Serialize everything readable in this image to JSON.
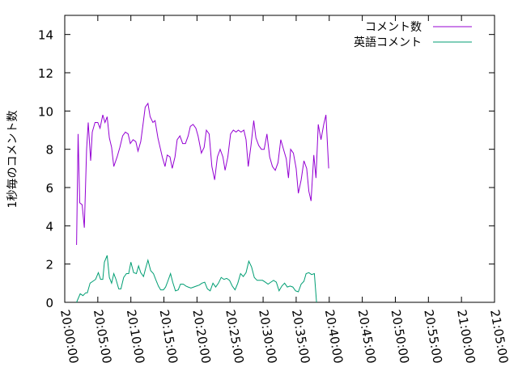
{
  "chart_data": {
    "type": "line",
    "xlabel": "",
    "ylabel": "1秒毎のコメント数",
    "xlim": [
      "20:00:00",
      "21:05:00"
    ],
    "ylim": [
      0,
      15
    ],
    "x_ticks": [
      "20:00:00",
      "20:05:00",
      "20:10:00",
      "20:15:00",
      "20:20:00",
      "20:25:00",
      "20:30:00",
      "20:35:00",
      "20:40:00",
      "20:45:00",
      "20:50:00",
      "20:55:00",
      "21:00:00",
      "21:05:00"
    ],
    "y_ticks": [
      0,
      2,
      4,
      6,
      8,
      10,
      12,
      14
    ],
    "grid": false,
    "legend_position": "top-right",
    "series": [
      {
        "name": "コメント数",
        "color": "#9400d3",
        "points": [
          [
            "20:01:47",
            3.0
          ],
          [
            "20:02:01",
            8.8
          ],
          [
            "20:02:16",
            5.2
          ],
          [
            "20:02:38",
            5.1
          ],
          [
            "20:02:58",
            3.9
          ],
          [
            "20:03:18",
            8.0
          ],
          [
            "20:03:33",
            9.4
          ],
          [
            "20:03:55",
            7.4
          ],
          [
            "20:04:10",
            8.9
          ],
          [
            "20:04:35",
            9.4
          ],
          [
            "20:05:00",
            9.4
          ],
          [
            "20:05:20",
            9.1
          ],
          [
            "20:05:45",
            9.8
          ],
          [
            "20:06:05",
            9.4
          ],
          [
            "20:06:25",
            9.7
          ],
          [
            "20:06:45",
            8.6
          ],
          [
            "20:07:05",
            8.1
          ],
          [
            "20:07:25",
            7.1
          ],
          [
            "20:07:55",
            7.6
          ],
          [
            "20:08:20",
            8.1
          ],
          [
            "20:08:45",
            8.7
          ],
          [
            "20:09:10",
            8.9
          ],
          [
            "20:09:35",
            8.8
          ],
          [
            "20:09:55",
            8.3
          ],
          [
            "20:10:20",
            8.5
          ],
          [
            "20:10:45",
            8.4
          ],
          [
            "20:11:05",
            7.9
          ],
          [
            "20:11:30",
            8.4
          ],
          [
            "20:11:50",
            9.3
          ],
          [
            "20:12:10",
            10.2
          ],
          [
            "20:12:35",
            10.4
          ],
          [
            "20:12:55",
            9.7
          ],
          [
            "20:13:20",
            9.4
          ],
          [
            "20:13:40",
            9.5
          ],
          [
            "20:14:05",
            8.6
          ],
          [
            "20:14:25",
            8.1
          ],
          [
            "20:14:45",
            7.6
          ],
          [
            "20:15:10",
            7.1
          ],
          [
            "20:15:30",
            7.7
          ],
          [
            "20:15:55",
            7.6
          ],
          [
            "20:16:15",
            7.0
          ],
          [
            "20:16:40",
            7.6
          ],
          [
            "20:17:00",
            8.5
          ],
          [
            "20:17:25",
            8.7
          ],
          [
            "20:17:50",
            8.3
          ],
          [
            "20:18:15",
            8.3
          ],
          [
            "20:18:40",
            8.7
          ],
          [
            "20:19:00",
            9.2
          ],
          [
            "20:19:25",
            9.3
          ],
          [
            "20:19:50",
            9.1
          ],
          [
            "20:20:10",
            8.7
          ],
          [
            "20:20:40",
            7.8
          ],
          [
            "20:21:05",
            8.1
          ],
          [
            "20:21:25",
            9.0
          ],
          [
            "20:21:50",
            8.8
          ],
          [
            "20:22:15",
            7.1
          ],
          [
            "20:22:40",
            6.4
          ],
          [
            "20:23:05",
            7.6
          ],
          [
            "20:23:30",
            8.0
          ],
          [
            "20:23:55",
            7.6
          ],
          [
            "20:24:15",
            6.9
          ],
          [
            "20:24:40",
            7.6
          ],
          [
            "20:25:05",
            8.8
          ],
          [
            "20:25:30",
            9.0
          ],
          [
            "20:25:55",
            8.9
          ],
          [
            "20:26:15",
            9.0
          ],
          [
            "20:26:40",
            8.9
          ],
          [
            "20:27:05",
            9.0
          ],
          [
            "20:27:25",
            8.5
          ],
          [
            "20:27:45",
            7.1
          ],
          [
            "20:28:10",
            8.2
          ],
          [
            "20:28:35",
            9.5
          ],
          [
            "20:28:55",
            8.6
          ],
          [
            "20:29:20",
            8.2
          ],
          [
            "20:29:45",
            8.0
          ],
          [
            "20:30:10",
            8.0
          ],
          [
            "20:30:35",
            8.8
          ],
          [
            "20:31:00",
            7.6
          ],
          [
            "20:31:25",
            7.1
          ],
          [
            "20:31:50",
            6.9
          ],
          [
            "20:32:15",
            7.3
          ],
          [
            "20:32:40",
            8.5
          ],
          [
            "20:33:05",
            8.0
          ],
          [
            "20:33:30",
            7.5
          ],
          [
            "20:33:50",
            6.5
          ],
          [
            "20:34:10",
            8.0
          ],
          [
            "20:34:35",
            7.8
          ],
          [
            "20:35:00",
            7.0
          ],
          [
            "20:35:20",
            5.7
          ],
          [
            "20:35:45",
            6.4
          ],
          [
            "20:36:10",
            7.4
          ],
          [
            "20:36:35",
            7.0
          ],
          [
            "20:36:55",
            5.8
          ],
          [
            "20:37:15",
            5.3
          ],
          [
            "20:37:40",
            7.7
          ],
          [
            "20:38:00",
            6.5
          ],
          [
            "20:38:20",
            9.3
          ],
          [
            "20:38:45",
            8.5
          ],
          [
            "20:39:10",
            9.3
          ],
          [
            "20:39:30",
            9.8
          ],
          [
            "20:39:55",
            7.0
          ]
        ]
      },
      {
        "name": "英語コメント",
        "color": "#009e73",
        "points": [
          [
            "20:01:47",
            0.0
          ],
          [
            "20:02:20",
            0.45
          ],
          [
            "20:02:45",
            0.35
          ],
          [
            "20:03:10",
            0.5
          ],
          [
            "20:03:25",
            0.5
          ],
          [
            "20:03:50",
            1.0
          ],
          [
            "20:04:15",
            1.1
          ],
          [
            "20:04:40",
            1.2
          ],
          [
            "20:05:05",
            1.55
          ],
          [
            "20:05:25",
            1.2
          ],
          [
            "20:05:45",
            1.2
          ],
          [
            "20:06:00",
            2.1
          ],
          [
            "20:06:25",
            2.45
          ],
          [
            "20:06:45",
            1.3
          ],
          [
            "20:07:05",
            1.0
          ],
          [
            "20:07:25",
            1.5
          ],
          [
            "20:07:45",
            1.2
          ],
          [
            "20:08:10",
            0.7
          ],
          [
            "20:08:30",
            0.7
          ],
          [
            "20:08:55",
            1.3
          ],
          [
            "20:09:20",
            1.5
          ],
          [
            "20:09:40",
            1.5
          ],
          [
            "20:10:00",
            2.1
          ],
          [
            "20:10:25",
            1.55
          ],
          [
            "20:10:50",
            1.5
          ],
          [
            "20:11:10",
            1.9
          ],
          [
            "20:11:30",
            1.55
          ],
          [
            "20:11:55",
            1.35
          ],
          [
            "20:12:15",
            1.8
          ],
          [
            "20:12:35",
            2.2
          ],
          [
            "20:13:00",
            1.65
          ],
          [
            "20:13:25",
            1.5
          ],
          [
            "20:13:45",
            1.2
          ],
          [
            "20:14:10",
            0.85
          ],
          [
            "20:14:30",
            0.65
          ],
          [
            "20:14:55",
            0.65
          ],
          [
            "20:15:15",
            0.8
          ],
          [
            "20:15:35",
            1.1
          ],
          [
            "20:16:00",
            1.5
          ],
          [
            "20:16:20",
            1.05
          ],
          [
            "20:16:45",
            0.6
          ],
          [
            "20:17:10",
            0.65
          ],
          [
            "20:17:30",
            0.95
          ],
          [
            "20:17:55",
            0.95
          ],
          [
            "20:18:20",
            0.85
          ],
          [
            "20:18:40",
            0.8
          ],
          [
            "20:19:05",
            0.75
          ],
          [
            "20:19:30",
            0.8
          ],
          [
            "20:19:55",
            0.85
          ],
          [
            "20:20:20",
            0.9
          ],
          [
            "20:20:45",
            1.0
          ],
          [
            "20:21:10",
            1.05
          ],
          [
            "20:21:35",
            0.7
          ],
          [
            "20:22:00",
            0.6
          ],
          [
            "20:22:25",
            1.0
          ],
          [
            "20:22:50",
            0.8
          ],
          [
            "20:23:15",
            1.0
          ],
          [
            "20:23:40",
            1.3
          ],
          [
            "20:24:05",
            1.2
          ],
          [
            "20:24:30",
            1.25
          ],
          [
            "20:24:55",
            1.15
          ],
          [
            "20:25:20",
            0.85
          ],
          [
            "20:25:45",
            0.65
          ],
          [
            "20:26:10",
            1.0
          ],
          [
            "20:26:35",
            1.5
          ],
          [
            "20:27:00",
            1.35
          ],
          [
            "20:27:25",
            1.55
          ],
          [
            "20:27:50",
            2.15
          ],
          [
            "20:28:15",
            1.85
          ],
          [
            "20:28:40",
            1.3
          ],
          [
            "20:29:05",
            1.15
          ],
          [
            "20:29:30",
            1.15
          ],
          [
            "20:29:55",
            1.15
          ],
          [
            "20:30:20",
            1.05
          ],
          [
            "20:30:45",
            0.95
          ],
          [
            "20:31:10",
            1.05
          ],
          [
            "20:31:35",
            1.15
          ],
          [
            "20:32:00",
            1.05
          ],
          [
            "20:32:25",
            0.6
          ],
          [
            "20:32:50",
            0.85
          ],
          [
            "20:33:15",
            1.0
          ],
          [
            "20:33:40",
            0.8
          ],
          [
            "20:34:05",
            0.85
          ],
          [
            "20:34:30",
            0.8
          ],
          [
            "20:34:55",
            0.6
          ],
          [
            "20:35:20",
            0.55
          ],
          [
            "20:35:45",
            0.95
          ],
          [
            "20:36:10",
            1.1
          ],
          [
            "20:36:30",
            1.5
          ],
          [
            "20:36:55",
            1.55
          ],
          [
            "20:37:20",
            1.45
          ],
          [
            "20:37:45",
            1.5
          ],
          [
            "20:38:05",
            0.0
          ]
        ]
      }
    ]
  }
}
